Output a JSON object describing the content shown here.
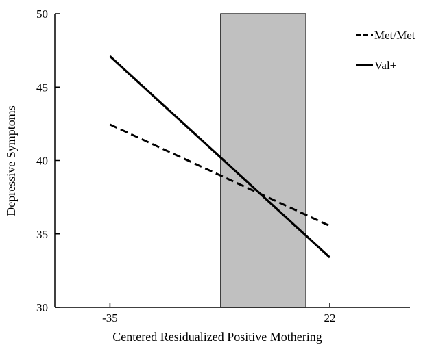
{
  "chart_data": {
    "type": "line",
    "xlabel": "Centered Residualized Positive Mothering",
    "ylabel": "Depressive Symptoms",
    "xlim": [
      -49.3,
      42.8
    ],
    "ylim": [
      30,
      50
    ],
    "x_ticks": [
      -35,
      22
    ],
    "y_ticks": [
      30,
      35,
      40,
      45,
      50
    ],
    "legend_position": "top-right",
    "region_of_significance": {
      "x_start": -6.3,
      "x_end": 15.8,
      "color": "#c0c0c0"
    },
    "series": [
      {
        "name": "Met/Met",
        "style": "dashed",
        "x": [
          -35,
          22
        ],
        "y": [
          42.45,
          35.55
        ]
      },
      {
        "name": "Val+",
        "style": "solid",
        "x": [
          -35,
          22
        ],
        "y": [
          47.1,
          33.4
        ]
      }
    ],
    "grid": false
  }
}
